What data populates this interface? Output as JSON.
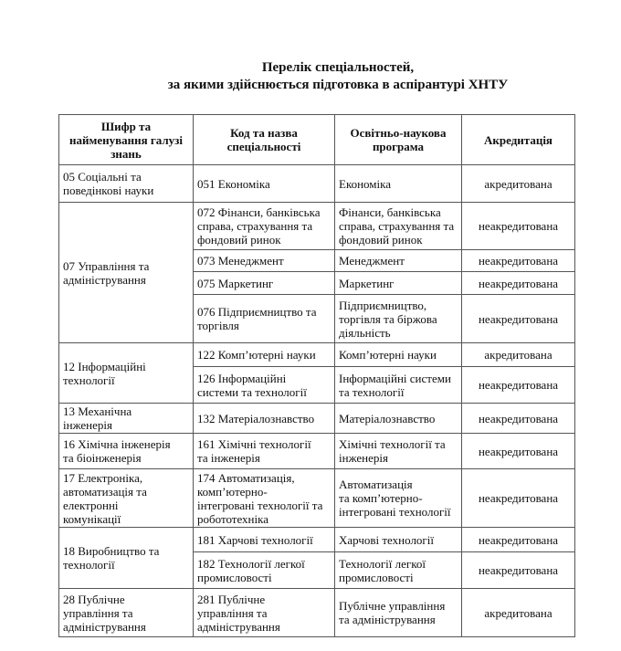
{
  "title": {
    "line1": "Перелік спеціальностей,",
    "line2": "за якими здійснюється підготовка в аспірантурі ХНТУ"
  },
  "table": {
    "headers": [
      "Шифр та\nнайменування галузі\nзнань",
      "Код та назва\nспеціальності",
      "Освітньо-наукова\nпрограма",
      "Акредитація"
    ],
    "groups": [
      {
        "field": "05 Соціальні та\nповедінкові науки",
        "rows": [
          {
            "code": "051 Економіка",
            "program": "Економіка",
            "accreditation": "акредитована"
          }
        ]
      },
      {
        "field": "07 Управління та\nадміністрування",
        "rows": [
          {
            "code": "072  Фінанси, банківська\nсправа, страхування та\nфондовий ринок",
            "program": "Фінанси, банківська\nсправа, страхування та\nфондовий ринок",
            "accreditation": "неакредитована"
          },
          {
            "code": "073  Менеджмент",
            "program": "Менеджмент",
            "accreditation": "неакредитована"
          },
          {
            "code": "075 Маркетинг",
            "program": "Маркетинг",
            "accreditation": "неакредитована"
          },
          {
            "code": "076 Підприємництво та\nторгівля",
            "program": "Підприємництво,\nторгівля та біржова\nдіяльність",
            "accreditation": "неакредитована"
          }
        ]
      },
      {
        "field": "12 Інформаційні\nтехнології",
        "rows": [
          {
            "code": "122 Комп’ютерні науки",
            "program": "Комп’ютерні науки",
            "accreditation": "акредитована"
          },
          {
            "code": "126  Інформаційні\nсистеми та технології",
            "program": "Інформаційні системи\nта технології",
            "accreditation": "неакредитована"
          }
        ]
      },
      {
        "field": "13 Механічна\nінженерія",
        "rows": [
          {
            "code": "132  Матеріалознавство",
            "program": "Матеріалознавство",
            "accreditation": "неакредитована"
          }
        ]
      },
      {
        "field": "16 Хімічна інженерія\nта біоінженерія",
        "rows": [
          {
            "code": "161 Хімічні технології\nта інженерія",
            "program": "Хімічні технології  та\nінженерія",
            "accreditation": "неакредитована"
          }
        ]
      },
      {
        "field": "17 Електроніка,\nавтоматизація та\nелектронні\nкомунікації",
        "rows": [
          {
            "code": "174 Автоматизація,\nкомп’ютерно-\nінтегровані технології та\nробототехніка",
            "program": "Автоматизація\nта комп’ютерно-\nінтегровані технології",
            "accreditation": "неакредитована"
          }
        ]
      },
      {
        "field": "18 Виробництво та\nтехнології",
        "rows": [
          {
            "code": "181 Харчові технології",
            "program": " Харчові технології",
            "accreditation": "неакредитована"
          },
          {
            "code": "182 Технології легкої\nпромисловості",
            "program": " Технології легкої\nпромисловості",
            "accreditation": "неакредитована"
          }
        ]
      },
      {
        "field": "28 Публічне\nуправління та\nадміністрування",
        "rows": [
          {
            "code": "281 Публічне\nуправління та\nадміністрування",
            "program": "Публічне управління\nта адміністрування",
            "accreditation": "акредитована"
          }
        ]
      }
    ]
  }
}
